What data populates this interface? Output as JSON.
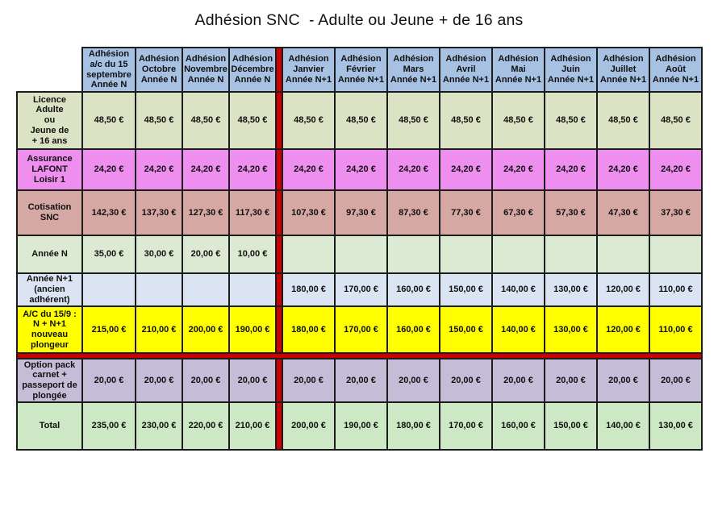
{
  "title": "Adhésion SNC  - Adulte ou Jeune + de 16 ans",
  "colors": {
    "header_bg": "#a6c1e1",
    "divider_red": "#cc0000",
    "grid_line": "#1c1c1c",
    "page_bg": "#ffffff"
  },
  "table": {
    "column_headers": [
      "Adhésion\na/c du 15\nseptembre\nAnnée N",
      "Adhésion\nOctobre\nAnnée N",
      "Adhésion\nNovembre\nAnnée N",
      "Adhésion\nDécembre\nAnnée N",
      "Adhésion\nJanvier\nAnnée N+1",
      "Adhésion\nFévrier\nAnnée N+1",
      "Adhésion\nMars\nAnnée N+1",
      "Adhésion\nAvril\nAnnée N+1",
      "Adhésion\nMai\nAnnée N+1",
      "Adhésion\nJuin\nAnnée N+1",
      "Adhésion\nJuillet\nAnnée N+1",
      "Adhésion\nAoût\nAnnée N+1"
    ],
    "red_divider_after_column": 4,
    "red_divider_after_row": 6,
    "rows": [
      {
        "id": "licence",
        "label": "Licence\nAdulte\nou\nJeune de\n+ 16 ans",
        "bg": "#dce3c4",
        "values": [
          "48,50 €",
          "48,50 €",
          "48,50 €",
          "48,50 €",
          "48,50 €",
          "48,50 €",
          "48,50 €",
          "48,50 €",
          "48,50 €",
          "48,50 €",
          "48,50 €",
          "48,50 €"
        ]
      },
      {
        "id": "assurance-lafont",
        "label": "Assurance\nLAFONT\nLoisir 1",
        "bg": "#ee8eee",
        "values": [
          "24,20 €",
          "24,20 €",
          "24,20 €",
          "24,20 €",
          "24,20 €",
          "24,20 €",
          "24,20 €",
          "24,20 €",
          "24,20 €",
          "24,20 €",
          "24,20 €",
          "24,20 €"
        ]
      },
      {
        "id": "cotisation-snc",
        "label": "Cotisation\nSNC",
        "bg": "#d5a8a4",
        "values": [
          "142,30 €",
          "137,30 €",
          "127,30 €",
          "117,30 €",
          "107,30 €",
          "97,30 €",
          "87,30 €",
          "77,30 €",
          "67,30 €",
          "57,30 €",
          "47,30 €",
          "37,30 €"
        ]
      },
      {
        "id": "annee-n",
        "label": "Année N",
        "bg": "#dcead3",
        "values": [
          "35,00 €",
          "30,00 €",
          "20,00 €",
          "10,00 €",
          "",
          "",
          "",
          "",
          "",
          "",
          "",
          ""
        ]
      },
      {
        "id": "annee-n1",
        "label": "Année N+1\n(ancien\nadhérent)",
        "bg": "#dbe4f2",
        "values": [
          "",
          "",
          "",
          "",
          "180,00 €",
          "170,00 €",
          "160,00 €",
          "150,00 €",
          "140,00 €",
          "130,00 €",
          "120,00 €",
          "110,00 €"
        ]
      },
      {
        "id": "nouveau-plongeur",
        "label": "A/C du 15/9 :\nN + N+1\nnouveau\nplongeur",
        "bg": "#ffff00",
        "values": [
          "215,00 €",
          "210,00 €",
          "200,00 €",
          "190,00 €",
          "180,00 €",
          "170,00 €",
          "160,00 €",
          "150,00 €",
          "140,00 €",
          "130,00 €",
          "120,00 €",
          "110,00 €"
        ]
      },
      {
        "id": "option-pack",
        "label": "Option pack\ncarnet +\npasseport de\nplongée",
        "bg": "#c5bdd7",
        "values": [
          "20,00 €",
          "20,00 €",
          "20,00 €",
          "20,00 €",
          "20,00 €",
          "20,00 €",
          "20,00 €",
          "20,00 €",
          "20,00 €",
          "20,00 €",
          "20,00 €",
          "20,00 €"
        ]
      },
      {
        "id": "total",
        "label": "Total",
        "bg": "#cce8c5",
        "values": [
          "235,00 €",
          "230,00 €",
          "220,00 €",
          "210,00 €",
          "200,00 €",
          "190,00 €",
          "180,00 €",
          "170,00 €",
          "160,00 €",
          "150,00 €",
          "140,00 €",
          "130,00 €"
        ]
      }
    ]
  }
}
